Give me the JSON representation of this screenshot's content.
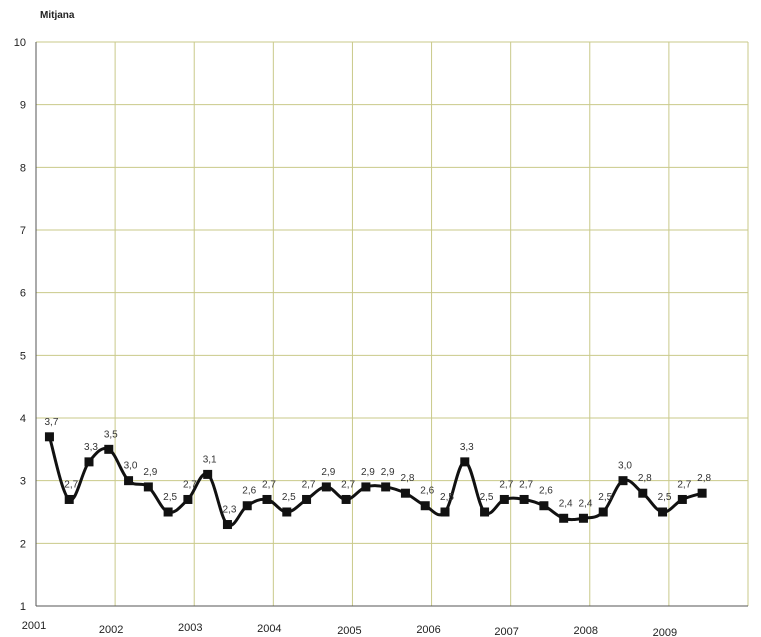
{
  "chart_data": {
    "type": "line",
    "ylabel": "Mitjana",
    "ylim": [
      1,
      10
    ],
    "yticks": [
      "1",
      "2",
      "3",
      "4",
      "5",
      "6",
      "7",
      "8",
      "9",
      "10"
    ],
    "xlim": [
      2001,
      2010
    ],
    "xticks": [
      "2001",
      "2002",
      "2003",
      "2004",
      "2005",
      "2006",
      "2007",
      "2008",
      "2009"
    ],
    "grid": true,
    "legend": "none",
    "colors": {
      "grid": "#c9c98a",
      "axis": "#555555",
      "line": "#111111",
      "marker": "#111111"
    },
    "series": [
      {
        "x": [
          2001.17,
          2001.42,
          2001.67,
          2001.92,
          2002.17,
          2002.42,
          2002.67,
          2002.92,
          2003.17,
          2003.42,
          2003.67,
          2003.92,
          2004.17,
          2004.42,
          2004.67,
          2004.92,
          2005.17,
          2005.42,
          2005.67,
          2005.92,
          2006.17,
          2006.42,
          2006.67,
          2006.92,
          2007.17,
          2007.42,
          2007.67,
          2007.92,
          2008.17,
          2008.42,
          2008.67,
          2008.92,
          2009.17,
          2009.42
        ],
        "values": [
          3.7,
          2.7,
          3.3,
          3.5,
          3.0,
          2.9,
          2.5,
          2.7,
          3.1,
          2.3,
          2.6,
          2.7,
          2.5,
          2.7,
          2.9,
          2.7,
          2.9,
          2.9,
          2.8,
          2.6,
          2.5,
          3.3,
          2.5,
          2.7,
          2.7,
          2.6,
          2.4,
          2.4,
          2.5,
          3.0,
          2.8,
          2.5,
          2.7,
          2.8
        ],
        "labels": [
          "3,7",
          "2,7",
          "3,3",
          "3,5",
          "3,0",
          "2,9",
          "2,5",
          "2,7",
          "3,1",
          "2,3",
          "2,6",
          "2,7",
          "2,5",
          "2,7",
          "2,9",
          "2,7",
          "2,9",
          "2,9",
          "2,8",
          "2,6",
          "2,5",
          "3,3",
          "2,5",
          "2,7",
          "2,7",
          "2,6",
          "2,4",
          "2,4",
          "2,5",
          "3,0",
          "2,8",
          "2,5",
          "2,7",
          "2,8"
        ]
      }
    ]
  }
}
